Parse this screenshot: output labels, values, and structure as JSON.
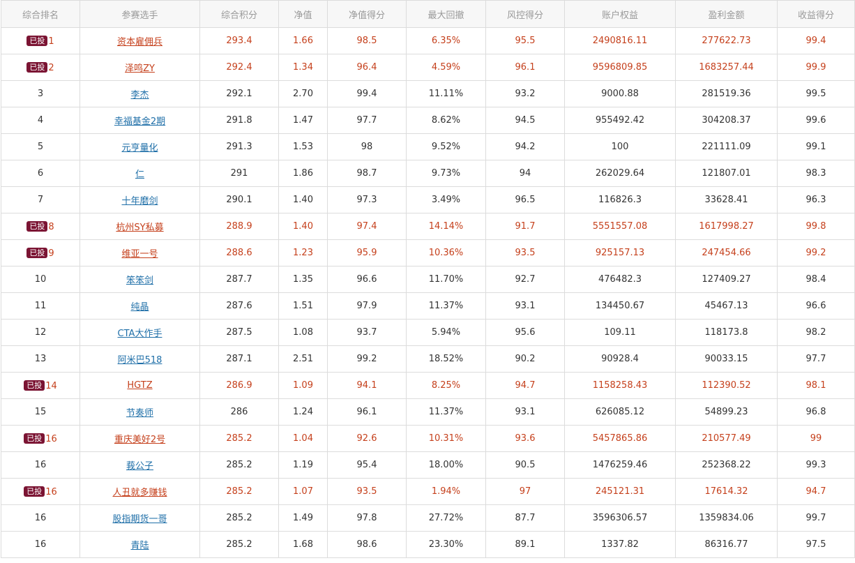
{
  "table": {
    "headers": [
      "综合排名",
      "参赛选手",
      "综合积分",
      "净值",
      "净值得分",
      "最大回撤",
      "风控得分",
      "账户权益",
      "盈利金额",
      "收益得分"
    ],
    "rows": [
      {
        "badge": "已投",
        "rank": "1",
        "name": "资本雇佣兵",
        "score": "293.4",
        "nav": "1.66",
        "nav_score": "98.5",
        "drawdown": "6.35%",
        "risk_score": "95.5",
        "equity": "2490816.11",
        "profit": "277622.73",
        "return_score": "99.4",
        "hl": true
      },
      {
        "badge": "已投",
        "rank": "2",
        "name": "泽鸣ZY",
        "score": "292.4",
        "nav": "1.34",
        "nav_score": "96.4",
        "drawdown": "4.59%",
        "risk_score": "96.1",
        "equity": "9596809.85",
        "profit": "1683257.44",
        "return_score": "99.9",
        "hl": true
      },
      {
        "badge": "",
        "rank": "3",
        "name": "李杰",
        "score": "292.1",
        "nav": "2.70",
        "nav_score": "99.4",
        "drawdown": "11.11%",
        "risk_score": "93.2",
        "equity": "9000.88",
        "profit": "281519.36",
        "return_score": "99.5",
        "hl": false
      },
      {
        "badge": "",
        "rank": "4",
        "name": "幸福基金2期",
        "score": "291.8",
        "nav": "1.47",
        "nav_score": "97.7",
        "drawdown": "8.62%",
        "risk_score": "94.5",
        "equity": "955492.42",
        "profit": "304208.37",
        "return_score": "99.6",
        "hl": false
      },
      {
        "badge": "",
        "rank": "5",
        "name": "元亨量化",
        "score": "291.3",
        "nav": "1.53",
        "nav_score": "98",
        "drawdown": "9.52%",
        "risk_score": "94.2",
        "equity": "100",
        "profit": "221111.09",
        "return_score": "99.1",
        "hl": false
      },
      {
        "badge": "",
        "rank": "6",
        "name": "仁",
        "score": "291",
        "nav": "1.86",
        "nav_score": "98.7",
        "drawdown": "9.73%",
        "risk_score": "94",
        "equity": "262029.64",
        "profit": "121807.01",
        "return_score": "98.3",
        "hl": false
      },
      {
        "badge": "",
        "rank": "7",
        "name": "十年磨剑",
        "score": "290.1",
        "nav": "1.40",
        "nav_score": "97.3",
        "drawdown": "3.49%",
        "risk_score": "96.5",
        "equity": "116826.3",
        "profit": "33628.41",
        "return_score": "96.3",
        "hl": false
      },
      {
        "badge": "已投",
        "rank": "8",
        "name": "杭州SY私募",
        "score": "288.9",
        "nav": "1.40",
        "nav_score": "97.4",
        "drawdown": "14.14%",
        "risk_score": "91.7",
        "equity": "5551557.08",
        "profit": "1617998.27",
        "return_score": "99.8",
        "hl": true
      },
      {
        "badge": "已投",
        "rank": "9",
        "name": "维亚一号",
        "score": "288.6",
        "nav": "1.23",
        "nav_score": "95.9",
        "drawdown": "10.36%",
        "risk_score": "93.5",
        "equity": "925157.13",
        "profit": "247454.66",
        "return_score": "99.2",
        "hl": true
      },
      {
        "badge": "",
        "rank": "10",
        "name": "笨笨剑",
        "score": "287.7",
        "nav": "1.35",
        "nav_score": "96.6",
        "drawdown": "11.70%",
        "risk_score": "92.7",
        "equity": "476482.3",
        "profit": "127409.27",
        "return_score": "98.4",
        "hl": false
      },
      {
        "badge": "",
        "rank": "11",
        "name": "纯晶",
        "score": "287.6",
        "nav": "1.51",
        "nav_score": "97.9",
        "drawdown": "11.37%",
        "risk_score": "93.1",
        "equity": "134450.67",
        "profit": "45467.13",
        "return_score": "96.6",
        "hl": false
      },
      {
        "badge": "",
        "rank": "12",
        "name": "CTA大作手",
        "score": "287.5",
        "nav": "1.08",
        "nav_score": "93.7",
        "drawdown": "5.94%",
        "risk_score": "95.6",
        "equity": "109.11",
        "profit": "118173.8",
        "return_score": "98.2",
        "hl": false
      },
      {
        "badge": "",
        "rank": "13",
        "name": "阿米巴518",
        "score": "287.1",
        "nav": "2.51",
        "nav_score": "99.2",
        "drawdown": "18.52%",
        "risk_score": "90.2",
        "equity": "90928.4",
        "profit": "90033.15",
        "return_score": "97.7",
        "hl": false
      },
      {
        "badge": "已投",
        "rank": "14",
        "name": "HGTZ",
        "score": "286.9",
        "nav": "1.09",
        "nav_score": "94.1",
        "drawdown": "8.25%",
        "risk_score": "94.7",
        "equity": "1158258.43",
        "profit": "112390.52",
        "return_score": "98.1",
        "hl": true
      },
      {
        "badge": "",
        "rank": "15",
        "name": "节奏师",
        "score": "286",
        "nav": "1.24",
        "nav_score": "96.1",
        "drawdown": "11.37%",
        "risk_score": "93.1",
        "equity": "626085.12",
        "profit": "54899.23",
        "return_score": "96.8",
        "hl": false
      },
      {
        "badge": "已投",
        "rank": "16",
        "name": "重庆美好2号",
        "score": "285.2",
        "nav": "1.04",
        "nav_score": "92.6",
        "drawdown": "10.31%",
        "risk_score": "93.6",
        "equity": "5457865.86",
        "profit": "210577.49",
        "return_score": "99",
        "hl": true
      },
      {
        "badge": "",
        "rank": "16",
        "name": "莪公子",
        "score": "285.2",
        "nav": "1.19",
        "nav_score": "95.4",
        "drawdown": "18.00%",
        "risk_score": "90.5",
        "equity": "1476259.46",
        "profit": "252368.22",
        "return_score": "99.3",
        "hl": false
      },
      {
        "badge": "已投",
        "rank": "16",
        "name": "人丑就多赚钱",
        "score": "285.2",
        "nav": "1.07",
        "nav_score": "93.5",
        "drawdown": "1.94%",
        "risk_score": "97",
        "equity": "245121.31",
        "profit": "17614.32",
        "return_score": "94.7",
        "hl": true
      },
      {
        "badge": "",
        "rank": "16",
        "name": "股指期货一哥",
        "score": "285.2",
        "nav": "1.49",
        "nav_score": "97.8",
        "drawdown": "27.72%",
        "risk_score": "87.7",
        "equity": "3596306.57",
        "profit": "1359834.06",
        "return_score": "99.7",
        "hl": false
      },
      {
        "badge": "",
        "rank": "16",
        "name": "青陆",
        "score": "285.2",
        "nav": "1.68",
        "nav_score": "98.6",
        "drawdown": "23.30%",
        "risk_score": "89.1",
        "equity": "1337.82",
        "profit": "86316.77",
        "return_score": "97.5",
        "hl": false
      }
    ]
  }
}
